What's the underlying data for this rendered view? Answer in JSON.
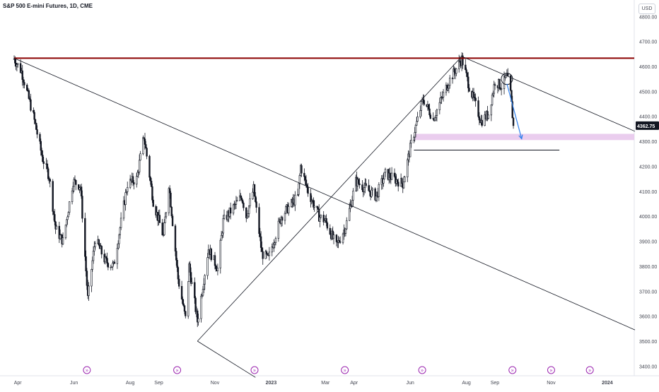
{
  "header": {
    "title": "S&P 500 E-mini Futures, 1D, CME",
    "currency": "USD"
  },
  "colors": {
    "candle": "#131722",
    "resistance": "#8b0000",
    "zone": "#e8c8ec",
    "arrow": "#2f80ed",
    "price_label_bg": "#131722",
    "event_icon": "#9c27b0"
  },
  "chart_data": {
    "type": "candlestick",
    "title": "S&P 500 E-mini Futures, 1D, CME",
    "x_tick_labels": [
      "Apr",
      "Jun",
      "Aug",
      "Sep",
      "Nov",
      "2023",
      "Mar",
      "Apr",
      "Jun",
      "Aug",
      "Sep",
      "Nov",
      "2024"
    ],
    "y_tick_labels": [
      "4800.00",
      "4700.00",
      "4600.00",
      "4500.00",
      "4400.00",
      "4300.00",
      "4200.00",
      "4100.00",
      "4000.00",
      "3900.00",
      "3800.00",
      "3700.00",
      "3600.00",
      "3500.00",
      "3400.00"
    ],
    "ylim": [
      3380,
      4840
    ],
    "current_price": "4362.75",
    "grid": false,
    "price_path": [
      [
        "2022-03-28",
        4630
      ],
      [
        "2022-04-05",
        4580
      ],
      [
        "2022-04-18",
        4400
      ],
      [
        "2022-04-28",
        4230
      ],
      [
        "2022-05-05",
        4160
      ],
      [
        "2022-05-12",
        3950
      ],
      [
        "2022-05-20",
        3900
      ],
      [
        "2022-05-31",
        4140
      ],
      [
        "2022-06-08",
        4120
      ],
      [
        "2022-06-16",
        3670
      ],
      [
        "2022-06-24",
        3910
      ],
      [
        "2022-07-05",
        3820
      ],
      [
        "2022-07-14",
        3800
      ],
      [
        "2022-07-29",
        4130
      ],
      [
        "2022-08-08",
        4150
      ],
      [
        "2022-08-16",
        4320
      ],
      [
        "2022-08-26",
        4060
      ],
      [
        "2022-09-06",
        3920
      ],
      [
        "2022-09-12",
        4130
      ],
      [
        "2022-09-22",
        3750
      ],
      [
        "2022-09-30",
        3590
      ],
      [
        "2022-10-04",
        3800
      ],
      [
        "2022-10-13",
        3580
      ],
      [
        "2022-10-25",
        3870
      ],
      [
        "2022-11-04",
        3790
      ],
      [
        "2022-11-10",
        3980
      ],
      [
        "2022-11-30",
        4080
      ],
      [
        "2022-12-05",
        4000
      ],
      [
        "2022-12-13",
        4110
      ],
      [
        "2022-12-22",
        3850
      ],
      [
        "2022-12-29",
        3830
      ],
      [
        "2023-01-12",
        4000
      ],
      [
        "2023-01-30",
        4080
      ],
      [
        "2023-02-02",
        4200
      ],
      [
        "2023-02-10",
        4100
      ],
      [
        "2023-02-22",
        4000
      ],
      [
        "2023-03-01",
        3980
      ],
      [
        "2023-03-13",
        3880
      ],
      [
        "2023-03-23",
        3960
      ],
      [
        "2023-04-03",
        4140
      ],
      [
        "2023-04-25",
        4080
      ],
      [
        "2023-05-05",
        4170
      ],
      [
        "2023-05-24",
        4130
      ],
      [
        "2023-06-02",
        4290
      ],
      [
        "2023-06-15",
        4470
      ],
      [
        "2023-06-26",
        4390
      ],
      [
        "2023-07-13",
        4540
      ],
      [
        "2023-07-27",
        4630
      ],
      [
        "2023-08-04",
        4520
      ],
      [
        "2023-08-17",
        4380
      ],
      [
        "2023-08-25",
        4410
      ],
      [
        "2023-09-01",
        4540
      ],
      [
        "2023-09-08",
        4520
      ],
      [
        "2023-09-14",
        4560
      ],
      [
        "2023-09-18",
        4490
      ],
      [
        "2023-09-21",
        4362.75
      ]
    ],
    "annotations": {
      "horizontal_levels": [
        {
          "y": 4633,
          "x_start": "2022-03-28",
          "x_end": "2024-01-31",
          "style": "dark-red"
        },
        {
          "y": 4265,
          "x_start": "2023-06-05",
          "x_end": "2023-11-10",
          "style": "thin-black"
        }
      ],
      "zones": [
        {
          "y_from": 4305,
          "y_to": 4330,
          "x_start": "2023-06-05",
          "x_end": "2024-01-31"
        }
      ],
      "trendlines": [
        {
          "from": [
            "2022-03-28",
            4633
          ],
          "to": [
            "2024-01-31",
            3545
          ]
        },
        {
          "from": [
            "2022-10-13",
            3500
          ],
          "to": [
            "2023-07-27",
            4640
          ]
        },
        {
          "from": [
            "2023-07-27",
            4640
          ],
          "to": [
            "2024-01-31",
            4340
          ]
        },
        {
          "from": [
            "2022-10-13",
            3500
          ],
          "to": [
            "2022-12-15",
            3355
          ]
        }
      ],
      "arrow": {
        "from": [
          "2023-09-14",
          4530
        ],
        "to": [
          "2023-09-30",
          4310
        ]
      },
      "circle": {
        "at": [
          "2023-09-14",
          4550
        ]
      }
    }
  }
}
